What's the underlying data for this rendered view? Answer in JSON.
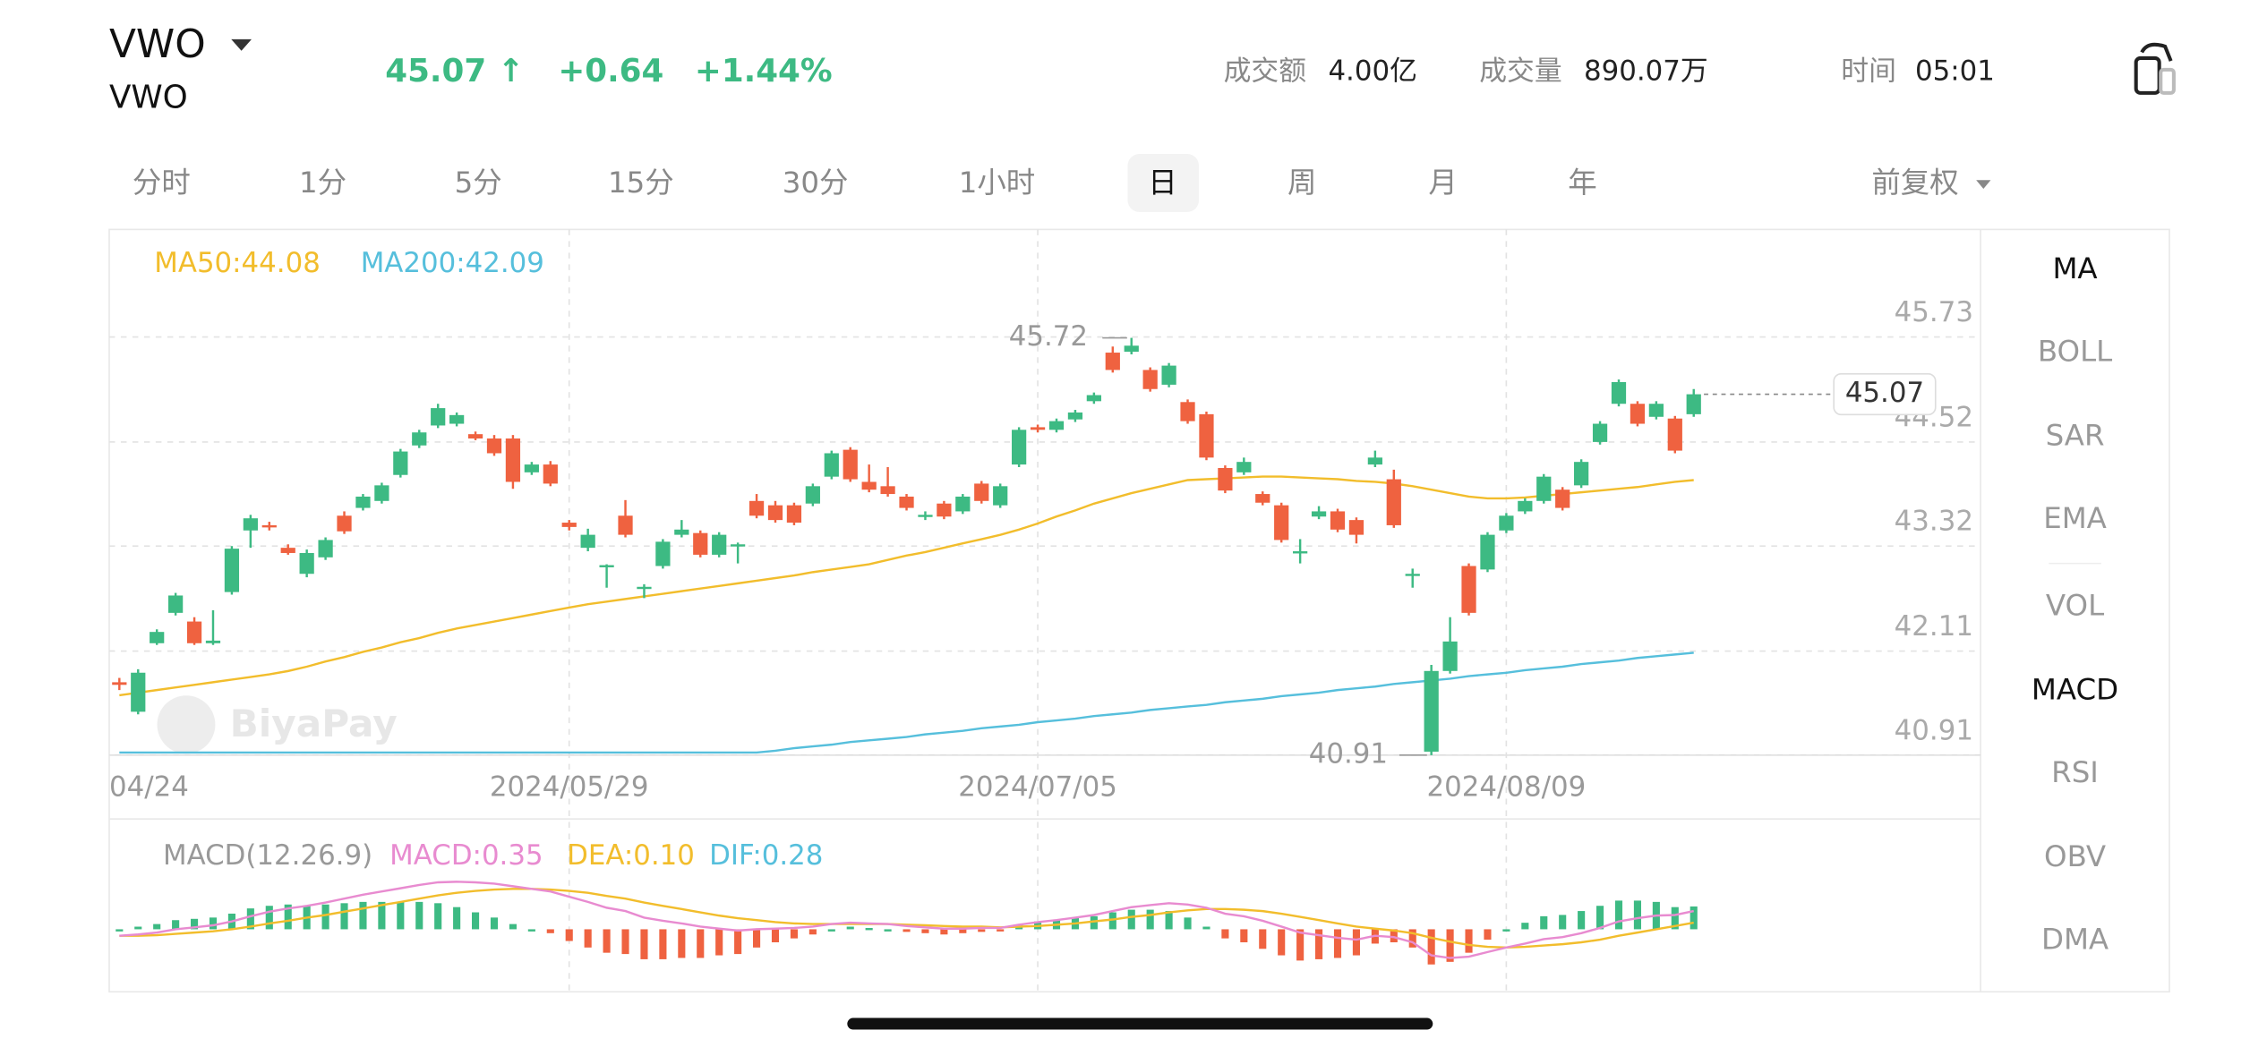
{
  "header": {
    "symbol": "VWO",
    "name": "VWO",
    "price": "45.07 ↑",
    "change": "+0.64",
    "change_pct": "+1.44%",
    "stats": [
      {
        "label": "成交额",
        "value": "4.00亿"
      },
      {
        "label": "成交量",
        "value": "890.07万"
      },
      {
        "label": "时间",
        "value": "05:01"
      }
    ]
  },
  "tabs": {
    "items": [
      "分时",
      "1分",
      "5分",
      "15分",
      "30分",
      "1小时",
      "日",
      "周",
      "月",
      "年"
    ],
    "selected": 6,
    "adjust": "前复权"
  },
  "indicators": [
    {
      "label": "MA",
      "active": true
    },
    {
      "label": "BOLL",
      "active": false
    },
    {
      "label": "SAR",
      "active": false
    },
    {
      "label": "EMA",
      "active": false
    },
    {
      "label": "VOL",
      "active": false
    },
    {
      "label": "MACD",
      "active": true
    },
    {
      "label": "RSI",
      "active": false
    },
    {
      "label": "OBV",
      "active": false
    },
    {
      "label": "DMA",
      "active": false
    }
  ],
  "chart_data": [
    {
      "type": "candlestick",
      "watermark": "BiyaPay",
      "up_color": "#3dba83",
      "down_color": "#ef6240",
      "categories": [
        "04/24",
        null,
        null,
        null,
        null,
        null,
        null,
        null,
        null,
        null,
        null,
        null,
        null,
        null,
        null,
        null,
        null,
        null,
        null,
        null,
        null,
        null,
        null,
        null,
        "2024/05/29",
        null,
        null,
        null,
        null,
        null,
        null,
        null,
        null,
        null,
        null,
        null,
        null,
        null,
        null,
        null,
        null,
        null,
        null,
        null,
        null,
        null,
        null,
        null,
        null,
        "2024/07/05",
        null,
        null,
        null,
        null,
        null,
        null,
        null,
        null,
        null,
        null,
        null,
        null,
        null,
        null,
        null,
        null,
        null,
        null,
        null,
        null,
        null,
        null,
        null,
        null,
        "2024/08/09",
        null,
        null,
        null,
        null,
        null,
        null,
        null,
        null,
        null,
        null
      ],
      "ohlc": [
        [
          41.75,
          41.8,
          41.66,
          41.72
        ],
        [
          41.41,
          41.9,
          41.38,
          41.86
        ],
        [
          42.2,
          42.36,
          42.18,
          42.33
        ],
        [
          42.55,
          42.78,
          42.52,
          42.75
        ],
        [
          42.45,
          42.5,
          42.18,
          42.2
        ],
        [
          42.2,
          42.58,
          42.18,
          42.23
        ],
        [
          42.79,
          43.32,
          42.76,
          43.29
        ],
        [
          43.5,
          43.68,
          43.3,
          43.64
        ],
        [
          43.56,
          43.6,
          43.5,
          43.55
        ],
        [
          43.3,
          43.34,
          43.22,
          43.24
        ],
        [
          43.0,
          43.28,
          42.96,
          43.24
        ],
        [
          43.19,
          43.42,
          43.16,
          43.39
        ],
        [
          43.67,
          43.72,
          43.46,
          43.49
        ],
        [
          43.76,
          43.92,
          43.73,
          43.89
        ],
        [
          43.84,
          44.05,
          43.81,
          44.02
        ],
        [
          44.14,
          44.44,
          44.11,
          44.41
        ],
        [
          44.48,
          44.66,
          44.45,
          44.63
        ],
        [
          44.71,
          44.96,
          44.68,
          44.91
        ],
        [
          44.73,
          44.86,
          44.7,
          44.83
        ],
        [
          44.61,
          44.64,
          44.54,
          44.56
        ],
        [
          44.56,
          44.6,
          44.36,
          44.39
        ],
        [
          44.56,
          44.6,
          43.98,
          44.06
        ],
        [
          44.17,
          44.29,
          44.14,
          44.26
        ],
        [
          44.26,
          44.3,
          44.01,
          44.04
        ],
        [
          43.59,
          43.62,
          43.5,
          43.54
        ],
        [
          43.3,
          43.52,
          43.26,
          43.45
        ],
        [
          43.08,
          43.11,
          42.84,
          43.1
        ],
        [
          43.67,
          43.85,
          43.42,
          43.45
        ],
        [
          42.83,
          42.88,
          42.72,
          42.85
        ],
        [
          43.09,
          43.4,
          43.06,
          43.37
        ],
        [
          43.45,
          43.62,
          43.42,
          43.51
        ],
        [
          43.47,
          43.5,
          43.19,
          43.22
        ],
        [
          43.22,
          43.48,
          43.19,
          43.45
        ],
        [
          43.32,
          43.36,
          43.12,
          43.34
        ],
        [
          43.84,
          43.92,
          43.64,
          43.67
        ],
        [
          43.79,
          43.84,
          43.59,
          43.62
        ],
        [
          43.79,
          43.82,
          43.56,
          43.59
        ],
        [
          43.81,
          44.04,
          43.78,
          44.01
        ],
        [
          44.12,
          44.42,
          44.09,
          44.39
        ],
        [
          44.43,
          44.46,
          44.06,
          44.09
        ],
        [
          44.06,
          44.26,
          43.94,
          43.97
        ],
        [
          44.01,
          44.23,
          43.89,
          43.92
        ],
        [
          43.89,
          43.92,
          43.73,
          43.76
        ],
        [
          43.66,
          43.72,
          43.62,
          43.68
        ],
        [
          43.81,
          43.84,
          43.63,
          43.66
        ],
        [
          43.72,
          43.92,
          43.69,
          43.89
        ],
        [
          44.04,
          44.07,
          43.81,
          43.84
        ],
        [
          43.79,
          44.04,
          43.76,
          44.01
        ],
        [
          44.26,
          44.69,
          44.23,
          44.66
        ],
        [
          44.69,
          44.72,
          44.63,
          44.66
        ],
        [
          44.66,
          44.79,
          44.63,
          44.76
        ],
        [
          44.78,
          44.89,
          44.75,
          44.86
        ],
        [
          44.99,
          45.09,
          44.96,
          45.06
        ],
        [
          45.55,
          45.62,
          45.32,
          45.35
        ],
        [
          45.56,
          45.72,
          45.53,
          45.63
        ],
        [
          45.35,
          45.38,
          45.1,
          45.13
        ],
        [
          45.18,
          45.43,
          45.15,
          45.4
        ],
        [
          44.98,
          45.01,
          44.73,
          44.76
        ],
        [
          44.84,
          44.87,
          44.31,
          44.34
        ],
        [
          44.22,
          44.25,
          43.93,
          43.96
        ],
        [
          44.17,
          44.34,
          44.14,
          44.29
        ],
        [
          43.92,
          43.95,
          43.79,
          43.82
        ],
        [
          43.79,
          43.82,
          43.36,
          43.39
        ],
        [
          43.24,
          43.4,
          43.12,
          43.26
        ],
        [
          43.66,
          43.78,
          43.63,
          43.72
        ],
        [
          43.72,
          43.75,
          43.48,
          43.51
        ],
        [
          43.62,
          43.65,
          43.35,
          43.45
        ],
        [
          44.26,
          44.42,
          44.23,
          44.34
        ],
        [
          44.09,
          44.2,
          43.53,
          43.56
        ],
        [
          42.98,
          43.06,
          42.84,
          43.0
        ],
        [
          40.95,
          41.95,
          40.91,
          41.88
        ],
        [
          41.88,
          42.5,
          41.85,
          42.22
        ],
        [
          43.09,
          43.12,
          42.52,
          42.55
        ],
        [
          43.05,
          43.48,
          43.02,
          43.45
        ],
        [
          43.5,
          43.7,
          43.47,
          43.67
        ],
        [
          43.72,
          43.87,
          43.69,
          43.84
        ],
        [
          43.84,
          44.15,
          43.81,
          44.12
        ],
        [
          43.97,
          44.0,
          43.73,
          43.76
        ],
        [
          44.02,
          44.32,
          43.99,
          44.29
        ],
        [
          44.52,
          44.76,
          44.49,
          44.73
        ],
        [
          44.96,
          45.24,
          44.93,
          45.21
        ],
        [
          44.96,
          44.99,
          44.7,
          44.73
        ],
        [
          44.81,
          44.99,
          44.78,
          44.96
        ],
        [
          44.79,
          44.82,
          44.39,
          44.42
        ],
        [
          44.84,
          45.13,
          44.81,
          45.07
        ]
      ],
      "series": [
        {
          "name": "MA50:44.08",
          "color": "#f2bd2c",
          "values": [
            41.6,
            41.63,
            41.66,
            41.69,
            41.72,
            41.75,
            41.78,
            41.81,
            41.84,
            41.88,
            41.93,
            41.99,
            42.04,
            42.1,
            42.15,
            42.21,
            42.26,
            42.32,
            42.37,
            42.41,
            42.45,
            42.49,
            42.53,
            42.57,
            42.61,
            42.65,
            42.68,
            42.71,
            42.74,
            42.77,
            42.8,
            42.83,
            42.86,
            42.89,
            42.92,
            42.95,
            42.98,
            43.02,
            43.05,
            43.08,
            43.11,
            43.16,
            43.21,
            43.25,
            43.3,
            43.35,
            43.4,
            43.45,
            43.51,
            43.58,
            43.66,
            43.73,
            43.81,
            43.87,
            43.93,
            43.98,
            44.03,
            44.08,
            44.09,
            44.1,
            44.11,
            44.12,
            44.12,
            44.11,
            44.1,
            44.09,
            44.07,
            44.06,
            44.04,
            44.01,
            43.97,
            43.93,
            43.89,
            43.87,
            43.87,
            43.88,
            43.9,
            43.92,
            43.94,
            43.96,
            43.98,
            44.0,
            44.03,
            44.06,
            44.08
          ]
        },
        {
          "name": "MA200:42.09",
          "color": "#56bfdc",
          "values": [
            40.94,
            40.94,
            40.94,
            40.94,
            40.94,
            40.94,
            40.94,
            40.94,
            40.94,
            40.94,
            40.94,
            40.94,
            40.94,
            40.94,
            40.94,
            40.94,
            40.94,
            40.94,
            40.94,
            40.94,
            40.94,
            40.94,
            40.94,
            40.94,
            40.94,
            40.94,
            40.94,
            40.94,
            40.94,
            40.94,
            40.94,
            40.94,
            40.94,
            40.94,
            40.94,
            40.96,
            40.99,
            41.01,
            41.03,
            41.06,
            41.08,
            41.1,
            41.12,
            41.15,
            41.17,
            41.19,
            41.22,
            41.24,
            41.26,
            41.29,
            41.31,
            41.33,
            41.36,
            41.38,
            41.4,
            41.43,
            41.45,
            41.47,
            41.49,
            41.52,
            41.54,
            41.56,
            41.59,
            41.61,
            41.63,
            41.66,
            41.68,
            41.7,
            41.73,
            41.75,
            41.77,
            41.79,
            41.82,
            41.84,
            41.86,
            41.89,
            41.91,
            41.93,
            41.96,
            41.98,
            42.0,
            42.03,
            42.05,
            42.07,
            42.09
          ]
        }
      ],
      "ylim": [
        40.91,
        46.97
      ],
      "yticks": [
        45.73,
        44.52,
        43.32,
        42.11,
        40.91
      ],
      "grid": true,
      "annotations": {
        "high": 45.72,
        "low": 40.91,
        "last": 45.07
      }
    },
    {
      "type": "macd",
      "title": "MACD(12.26.9)",
      "ylim": [
        -0.96,
        1.67
      ],
      "up_color": "#3dba83",
      "down_color": "#ef6240",
      "histogram": {
        "name": "MACD:0.35",
        "color": "#e88bd0",
        "values": [
          0.0,
          0.04,
          0.08,
          0.14,
          0.16,
          0.18,
          0.24,
          0.32,
          0.36,
          0.38,
          0.36,
          0.38,
          0.4,
          0.42,
          0.42,
          0.42,
          0.42,
          0.4,
          0.34,
          0.26,
          0.18,
          0.08,
          0.0,
          -0.06,
          -0.18,
          -0.28,
          -0.36,
          -0.38,
          -0.46,
          -0.46,
          -0.44,
          -0.44,
          -0.4,
          -0.38,
          -0.28,
          -0.2,
          -0.14,
          -0.08,
          0.0,
          0.04,
          0.02,
          0.0,
          -0.04,
          -0.06,
          -0.08,
          -0.06,
          -0.04,
          -0.02,
          0.06,
          0.12,
          0.14,
          0.18,
          0.2,
          0.26,
          0.3,
          0.3,
          0.28,
          0.18,
          0.04,
          -0.14,
          -0.2,
          -0.3,
          -0.4,
          -0.48,
          -0.46,
          -0.44,
          -0.4,
          -0.22,
          -0.2,
          -0.28,
          -0.54,
          -0.5,
          -0.36,
          -0.16,
          0.0,
          0.1,
          0.2,
          0.22,
          0.28,
          0.36,
          0.44,
          0.44,
          0.42,
          0.34,
          0.35
        ]
      },
      "series": [
        {
          "name": "DEA:0.10",
          "color": "#f2bd2c",
          "label_color": "#f2bd2c",
          "values": [
            -0.1,
            -0.1,
            -0.09,
            -0.07,
            -0.05,
            -0.03,
            0.0,
            0.04,
            0.09,
            0.13,
            0.18,
            0.22,
            0.27,
            0.32,
            0.37,
            0.42,
            0.47,
            0.52,
            0.56,
            0.59,
            0.61,
            0.62,
            0.62,
            0.61,
            0.59,
            0.56,
            0.51,
            0.47,
            0.41,
            0.36,
            0.31,
            0.26,
            0.21,
            0.17,
            0.14,
            0.11,
            0.09,
            0.08,
            0.08,
            0.08,
            0.08,
            0.08,
            0.07,
            0.06,
            0.05,
            0.04,
            0.04,
            0.03,
            0.04,
            0.05,
            0.07,
            0.09,
            0.12,
            0.15,
            0.19,
            0.22,
            0.26,
            0.29,
            0.31,
            0.31,
            0.3,
            0.28,
            0.24,
            0.19,
            0.14,
            0.09,
            0.04,
            0.01,
            -0.02,
            -0.06,
            -0.13,
            -0.19,
            -0.24,
            -0.27,
            -0.28,
            -0.27,
            -0.25,
            -0.23,
            -0.2,
            -0.16,
            -0.1,
            -0.05,
            0.0,
            0.05,
            0.1
          ]
        },
        {
          "name": "DIF:0.28",
          "color": "#e88bd0",
          "label_color": "#56bfdc",
          "values": [
            -0.1,
            -0.08,
            -0.05,
            0.0,
            0.03,
            0.06,
            0.12,
            0.2,
            0.27,
            0.32,
            0.36,
            0.41,
            0.47,
            0.53,
            0.58,
            0.63,
            0.68,
            0.72,
            0.73,
            0.72,
            0.7,
            0.66,
            0.62,
            0.58,
            0.5,
            0.42,
            0.33,
            0.28,
            0.18,
            0.13,
            0.09,
            0.04,
            0.01,
            -0.02,
            0.0,
            0.01,
            0.02,
            0.04,
            0.08,
            0.1,
            0.09,
            0.08,
            0.05,
            0.03,
            0.01,
            0.01,
            0.02,
            0.02,
            0.07,
            0.11,
            0.14,
            0.18,
            0.22,
            0.28,
            0.34,
            0.37,
            0.4,
            0.38,
            0.33,
            0.24,
            0.2,
            0.13,
            0.04,
            -0.05,
            -0.09,
            -0.13,
            -0.16,
            -0.1,
            -0.12,
            -0.2,
            -0.4,
            -0.44,
            -0.42,
            -0.35,
            -0.28,
            -0.22,
            -0.15,
            -0.12,
            -0.06,
            0.02,
            0.12,
            0.17,
            0.21,
            0.22,
            0.28
          ]
        }
      ]
    }
  ]
}
